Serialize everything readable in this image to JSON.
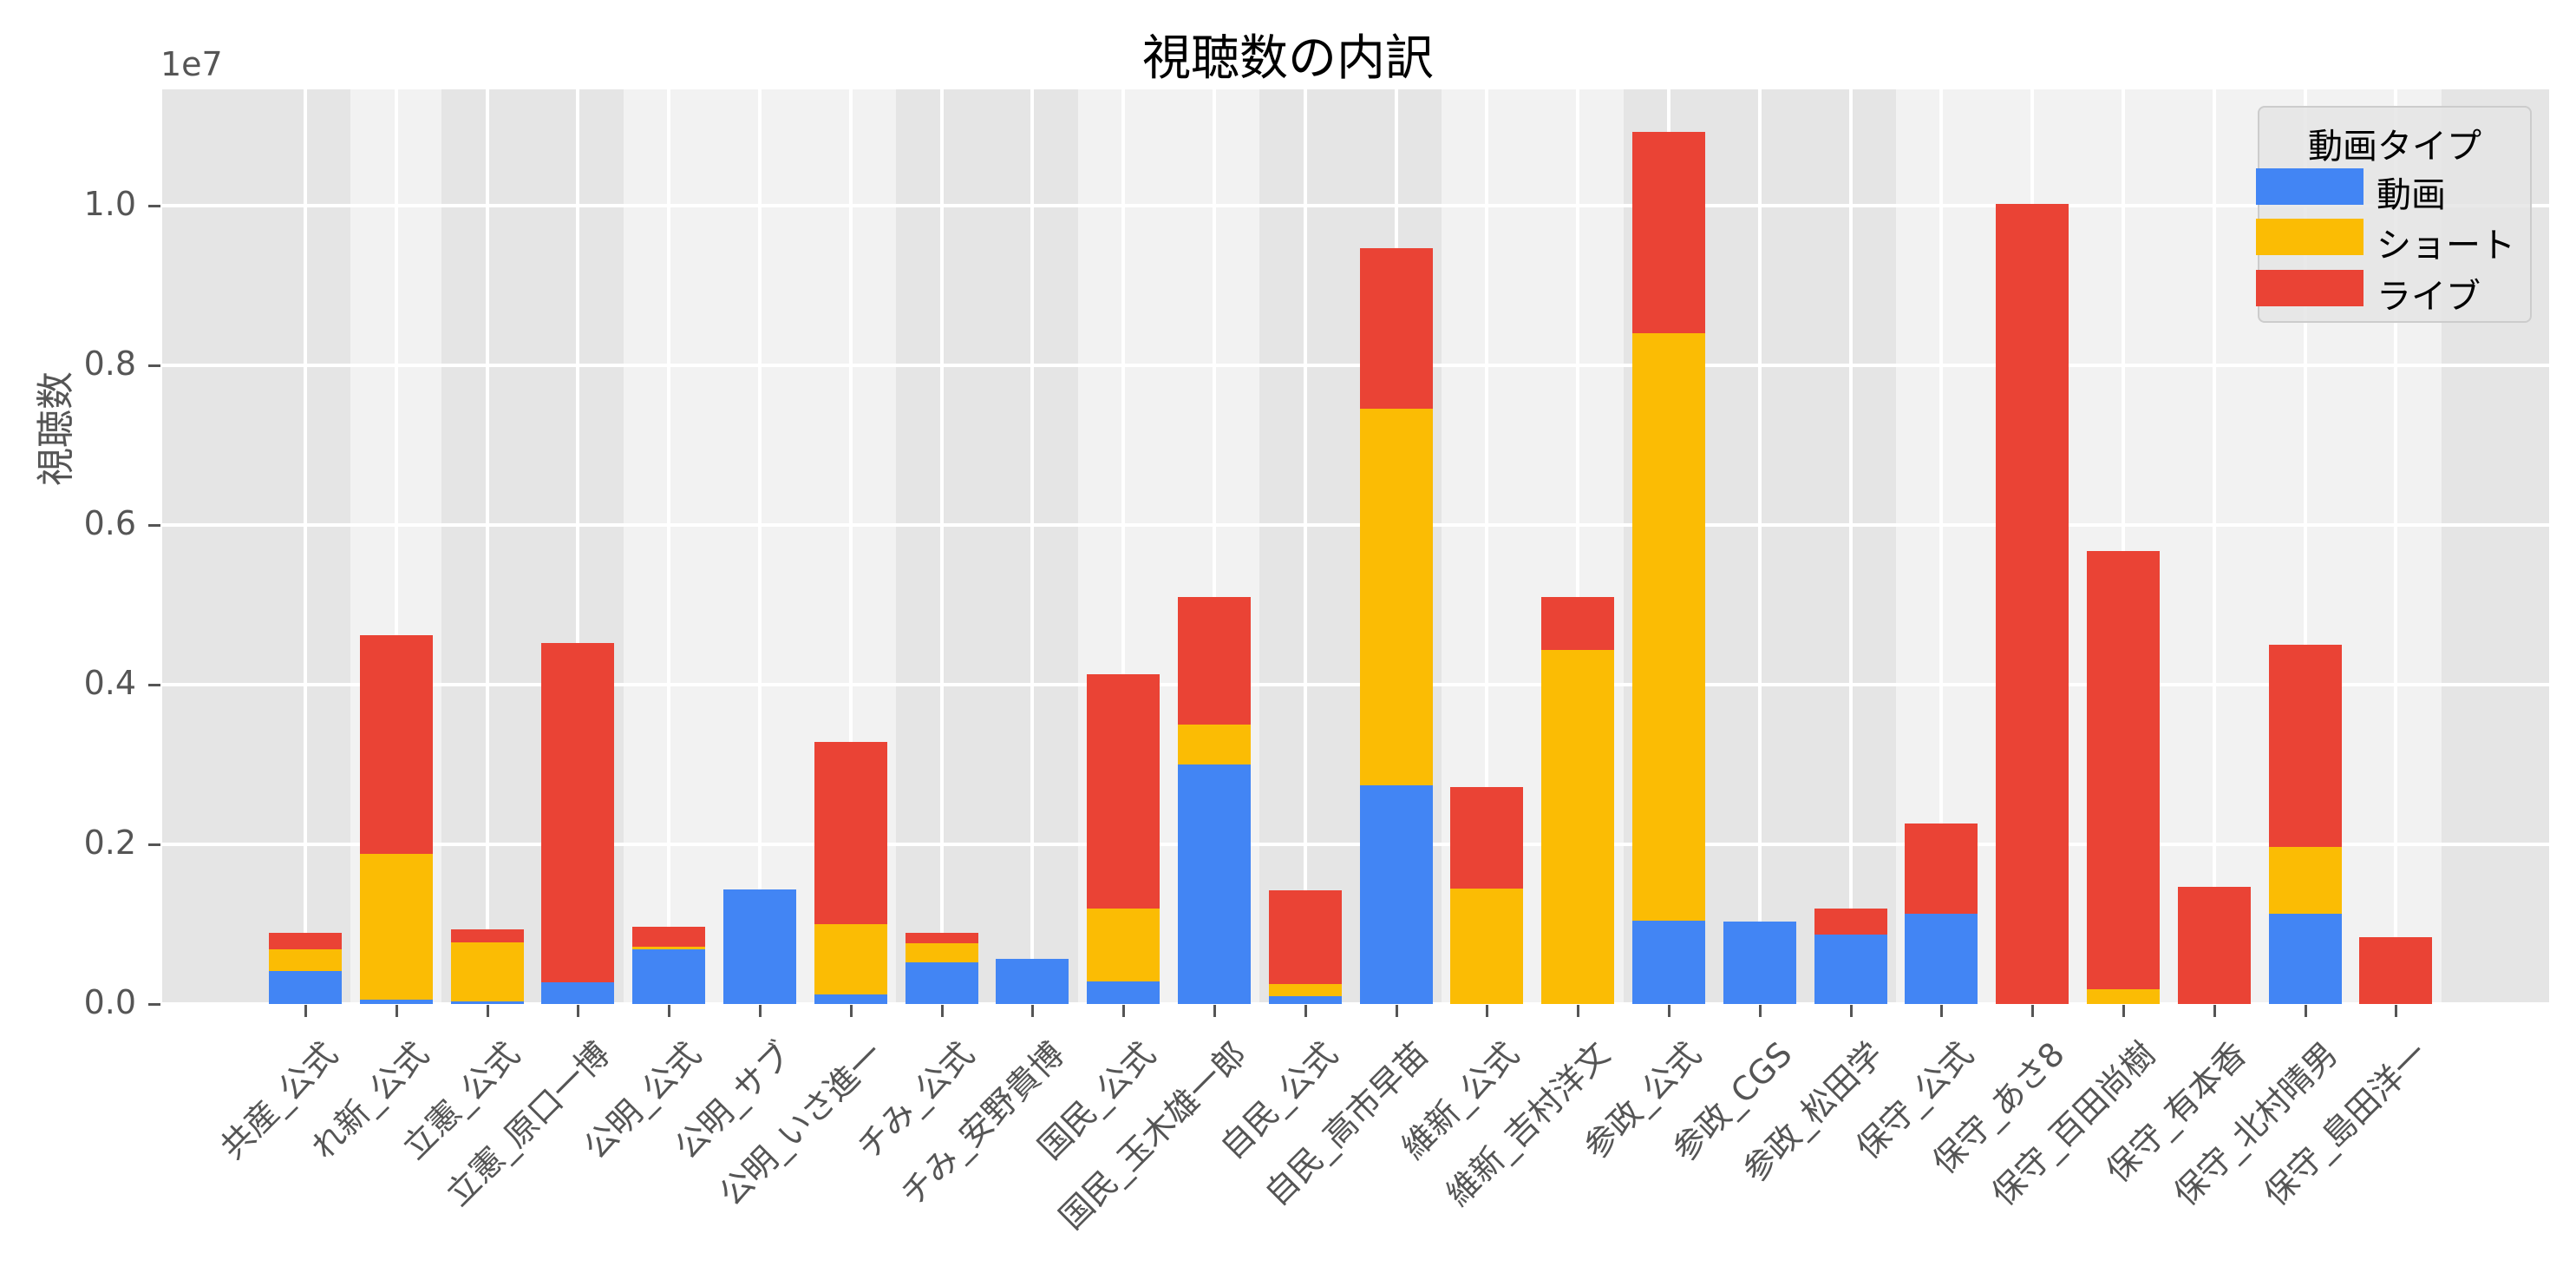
{
  "chart_data": {
    "type": "bar",
    "stacked": true,
    "title": "視聴数の内訳",
    "xlabel": "",
    "ylabel": "視聴数",
    "y_offset_label": "1e7",
    "ylim": [
      0,
      11500000
    ],
    "yticks": [
      0,
      2000000,
      4000000,
      6000000,
      8000000,
      10000000
    ],
    "ytick_labels": [
      "0.0",
      "0.2",
      "0.4",
      "0.6",
      "0.8",
      "1.0"
    ],
    "grid": true,
    "legend_position": "upper right",
    "legend_title": "動画タイプ",
    "categories": [
      "共産_公式",
      "れ新_公式",
      "立憲_公式",
      "立憲_原口一博",
      "公明_公式",
      "公明_サブ",
      "公明_いさ進一",
      "チみ_公式",
      "チみ_安野貴博",
      "国民_公式",
      "国民_玉木雄一郎",
      "自民_公式",
      "自民_高市早苗",
      "維新_公式",
      "維新_吉村洋文",
      "参政_公式",
      "参政_CGS",
      "参政_松田学",
      "保守_公式",
      "保守_あさ8",
      "保守_百田尚樹",
      "保守_有本香",
      "保守_北村晴男",
      "保守_島田洋一"
    ],
    "series": [
      {
        "name": "動画",
        "color": "#4285f4",
        "values": [
          410000,
          50000,
          30000,
          270000,
          685000,
          1430000,
          120000,
          520000,
          564000,
          280000,
          3000000,
          95000,
          2740000,
          0,
          0,
          1040000,
          1030000,
          870000,
          1130000,
          0,
          0,
          0,
          1130000,
          0
        ]
      },
      {
        "name": "ショート",
        "color": "#fbbc04",
        "values": [
          270000,
          1830000,
          740000,
          0,
          35000,
          0,
          880000,
          245000,
          0,
          916000,
          500000,
          152000,
          4720000,
          1450000,
          4440000,
          7360000,
          0,
          0,
          0,
          0,
          190000,
          0,
          840000,
          0
        ]
      },
      {
        "name": "ライブ",
        "color": "#ea4335",
        "values": [
          210000,
          2740000,
          160000,
          4250000,
          250000,
          0,
          2280000,
          125000,
          0,
          2935000,
          1600000,
          1178000,
          2010000,
          1270000,
          660000,
          2520000,
          0,
          330000,
          1130000,
          10020000,
          5480000,
          1470000,
          2530000,
          840000
        ]
      }
    ],
    "background_bands": [
      {
        "group": "共産",
        "from_index": 0,
        "to_index": 0,
        "shade": "dark"
      },
      {
        "group": "れ新",
        "from_index": 1,
        "to_index": 1,
        "shade": "light"
      },
      {
        "group": "立憲",
        "from_index": 2,
        "to_index": 3,
        "shade": "dark"
      },
      {
        "group": "公明",
        "from_index": 4,
        "to_index": 6,
        "shade": "light"
      },
      {
        "group": "チみ",
        "from_index": 7,
        "to_index": 8,
        "shade": "dark"
      },
      {
        "group": "国民",
        "from_index": 9,
        "to_index": 10,
        "shade": "light"
      },
      {
        "group": "自民",
        "from_index": 11,
        "to_index": 12,
        "shade": "dark"
      },
      {
        "group": "維新",
        "from_index": 13,
        "to_index": 14,
        "shade": "light"
      },
      {
        "group": "参政",
        "from_index": 15,
        "to_index": 17,
        "shade": "dark"
      },
      {
        "group": "保守",
        "from_index": 18,
        "to_index": 23,
        "shade": "light"
      }
    ]
  },
  "colors": {
    "band_dark": "#e5e5e5",
    "band_light": "#f2f2f2",
    "grid": "#ffffff"
  }
}
